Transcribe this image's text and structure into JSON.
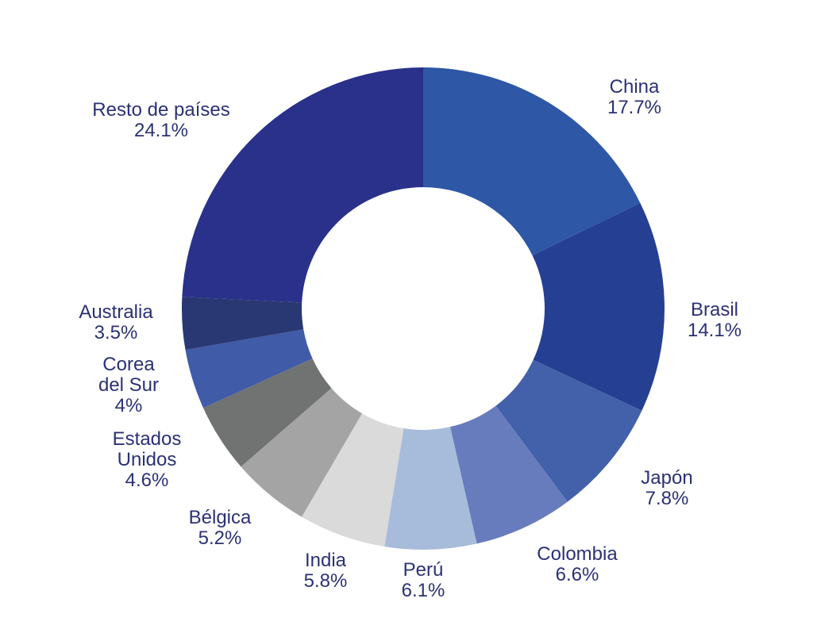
{
  "chart_data": {
    "type": "pie",
    "title": "",
    "legend": "none",
    "slices": [
      {
        "label": "China",
        "label_lines": [
          "China"
        ],
        "value": 17.7,
        "value_label": "17.7%",
        "color": "#2e57a6"
      },
      {
        "label": "Brasil",
        "label_lines": [
          "Brasil"
        ],
        "value": 14.1,
        "value_label": "14.1%",
        "color": "#253f93"
      },
      {
        "label": "Japón",
        "label_lines": [
          "Japón"
        ],
        "value": 7.8,
        "value_label": "7.8%",
        "color": "#4360aa"
      },
      {
        "label": "Colombia",
        "label_lines": [
          "Colombia"
        ],
        "value": 6.6,
        "value_label": "6.6%",
        "color": "#677cbc"
      },
      {
        "label": "Perú",
        "label_lines": [
          "Perú"
        ],
        "value": 6.1,
        "value_label": "6.1%",
        "color": "#a7bbdb"
      },
      {
        "label": "India",
        "label_lines": [
          "India"
        ],
        "value": 5.8,
        "value_label": "5.8%",
        "color": "#dadada"
      },
      {
        "label": "Bélgica",
        "label_lines": [
          "Bélgica"
        ],
        "value": 5.2,
        "value_label": "5.2%",
        "color": "#a4a4a4"
      },
      {
        "label": "Estados Unidos",
        "label_lines": [
          "Estados",
          "Unidos"
        ],
        "value": 4.6,
        "value_label": "4.6%",
        "color": "#717372"
      },
      {
        "label": "Corea del Sur",
        "label_lines": [
          "Corea",
          "del Sur"
        ],
        "value": 4.0,
        "value_label": "4%",
        "color": "#405ba8"
      },
      {
        "label": "Australia",
        "label_lines": [
          "Australia"
        ],
        "value": 3.5,
        "value_label": "3.5%",
        "color": "#293872"
      },
      {
        "label": "Resto de países",
        "label_lines": [
          "Resto de países"
        ],
        "value": 24.1,
        "value_label": "24.1%",
        "color": "#29318a"
      }
    ],
    "label_color": "#2b3174"
  }
}
